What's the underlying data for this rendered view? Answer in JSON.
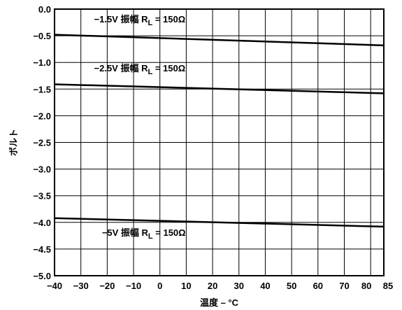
{
  "chart_data": {
    "type": "line",
    "title": "",
    "xlabel": "温度 – °C",
    "ylabel": "ボルト",
    "xlim": [
      -40,
      85
    ],
    "ylim": [
      -5.0,
      0.0
    ],
    "x_ticks": [
      -40,
      -30,
      -20,
      -10,
      0,
      10,
      20,
      30,
      40,
      50,
      60,
      70,
      80,
      85
    ],
    "x_tick_labels": [
      "−40",
      "−30",
      "−20",
      "−10",
      "0",
      "10",
      "20",
      "30",
      "40",
      "50",
      "60",
      "70",
      "80",
      "85"
    ],
    "y_ticks": [
      0.0,
      -0.5,
      -1.0,
      -1.5,
      -2.0,
      -2.5,
      -3.0,
      -3.5,
      -4.0,
      -4.5,
      -5.0
    ],
    "y_tick_labels": [
      "0.0",
      "−0.5",
      "−1.0",
      "−1.5",
      "−2.0",
      "−2.5",
      "−3.0",
      "−3.5",
      "−4.0",
      "−4.5",
      "−5.0"
    ],
    "grid": true,
    "series": [
      {
        "x": [
          -40,
          85
        ],
        "values": [
          -0.48,
          -0.68
        ]
      },
      {
        "x": [
          -40,
          85
        ],
        "values": [
          -1.41,
          -1.58
        ]
      },
      {
        "x": [
          -40,
          85
        ],
        "values": [
          -3.92,
          -4.08
        ]
      }
    ],
    "annotations": [
      {
        "text": "−1.5V 振幅 R",
        "sub": "L",
        "after": " = 150Ω",
        "x": -25,
        "y": -0.25
      },
      {
        "text": "−2.5V 振幅 R",
        "sub": "L",
        "after": " = 150Ω",
        "x": -25,
        "y": -1.17
      },
      {
        "text": "−5V 振幅 R",
        "sub": "L",
        "after": " = 150Ω",
        "x": -22,
        "y": -4.25
      }
    ]
  }
}
